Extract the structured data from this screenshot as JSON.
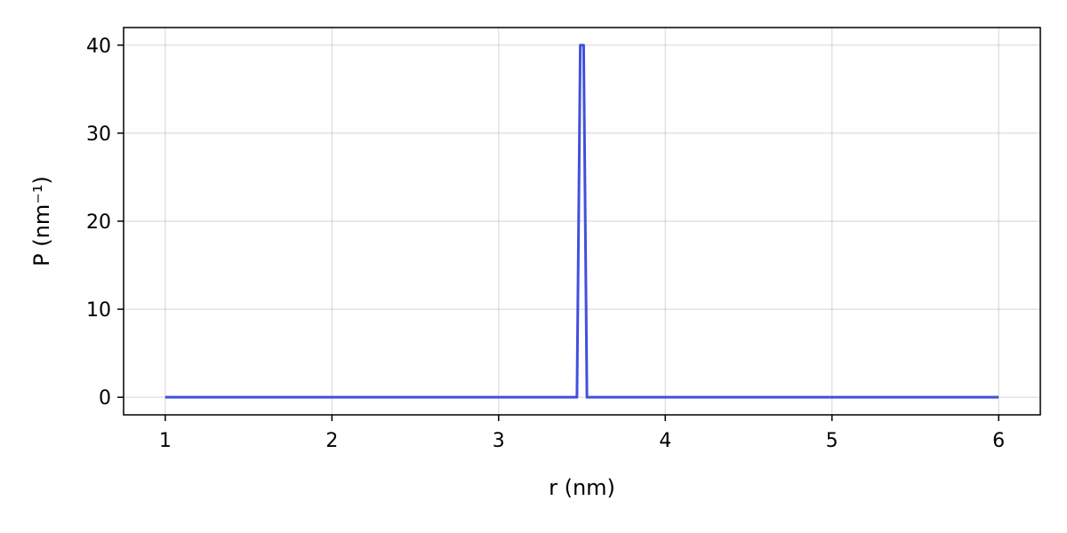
{
  "chart_data": {
    "type": "line",
    "title": "",
    "xlabel": "r (nm)",
    "ylabel": "P (nm⁻¹)",
    "xlim": [
      0.75,
      6.25
    ],
    "ylim": [
      -2,
      42
    ],
    "xticks": [
      1,
      2,
      3,
      4,
      5,
      6
    ],
    "xtick_labels": [
      "1",
      "2",
      "3",
      "4",
      "5",
      "6"
    ],
    "yticks": [
      0,
      10,
      20,
      30,
      40
    ],
    "ytick_labels": [
      "0",
      "10",
      "20",
      "30",
      "40"
    ],
    "grid": true,
    "legend": "none",
    "series": [
      {
        "color": "#4050dd",
        "x": [
          1.0,
          3.47,
          3.49,
          3.51,
          3.53,
          6.0
        ],
        "y": [
          0,
          0,
          40,
          40,
          0,
          0
        ]
      }
    ]
  }
}
